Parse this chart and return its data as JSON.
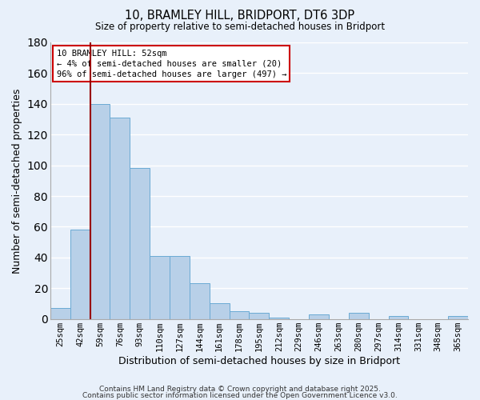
{
  "title": "10, BRAMLEY HILL, BRIDPORT, DT6 3DP",
  "subtitle": "Size of property relative to semi-detached houses in Bridport",
  "xlabel": "Distribution of semi-detached houses by size in Bridport",
  "ylabel": "Number of semi-detached properties",
  "bar_labels": [
    "25sqm",
    "42sqm",
    "59sqm",
    "76sqm",
    "93sqm",
    "110sqm",
    "127sqm",
    "144sqm",
    "161sqm",
    "178sqm",
    "195sqm",
    "212sqm",
    "229sqm",
    "246sqm",
    "263sqm",
    "280sqm",
    "297sqm",
    "314sqm",
    "331sqm",
    "348sqm",
    "365sqm"
  ],
  "bar_values": [
    7,
    58,
    140,
    131,
    98,
    41,
    41,
    23,
    10,
    5,
    4,
    1,
    0,
    3,
    0,
    4,
    0,
    2,
    0,
    0,
    2
  ],
  "ylim": [
    0,
    180
  ],
  "yticks": [
    0,
    20,
    40,
    60,
    80,
    100,
    120,
    140,
    160,
    180
  ],
  "bar_color": "#b8d0e8",
  "bar_edge_color": "#6aaad4",
  "bg_color": "#e8f0fa",
  "grid_color": "#ffffff",
  "vline_color": "#990000",
  "vline_x": 1.5,
  "annotation_title": "10 BRAMLEY HILL: 52sqm",
  "annotation_line1": "← 4% of semi-detached houses are smaller (20)",
  "annotation_line2": "96% of semi-detached houses are larger (497) →",
  "footer1": "Contains HM Land Registry data © Crown copyright and database right 2025.",
  "footer2": "Contains public sector information licensed under the Open Government Licence v3.0."
}
